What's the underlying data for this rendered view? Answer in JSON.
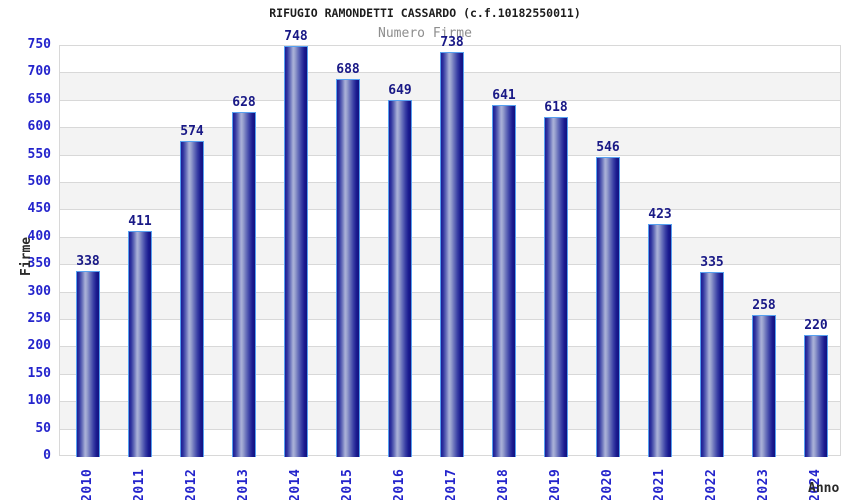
{
  "chart_data": {
    "type": "bar",
    "title": "RIFUGIO RAMONDETTI CASSARDO (c.f.10182550011)",
    "subtitle": "Numero Firme",
    "xlabel": "Anno",
    "ylabel": "Firme",
    "categories": [
      "2010",
      "2011",
      "2012",
      "2013",
      "2014",
      "2015",
      "2016",
      "2017",
      "2018",
      "2019",
      "2020",
      "2021",
      "2022",
      "2023",
      "2024"
    ],
    "values": [
      338,
      411,
      574,
      628,
      748,
      688,
      649,
      738,
      641,
      618,
      546,
      423,
      335,
      258,
      220
    ],
    "ylim": [
      0,
      750
    ],
    "ytick_step": 50,
    "yticks": [
      0,
      50,
      100,
      150,
      200,
      250,
      300,
      350,
      400,
      450,
      500,
      550,
      600,
      650,
      700,
      750
    ],
    "grid": true,
    "legend_position": "none",
    "colors": {
      "tick_label": "#2424cc",
      "value_label": "#191986",
      "title": "#1c1c1c",
      "subtitle": "#8e8e8e",
      "axis_title": "#2a2a2a",
      "grid_line": "#d8d8d8",
      "band_fill": "#f3f3f3",
      "plot_border": "#d8d8d8",
      "bar_outline": "#56a0f0",
      "bar_dark": "#16168e",
      "bar_light": "#aab1d8"
    }
  }
}
